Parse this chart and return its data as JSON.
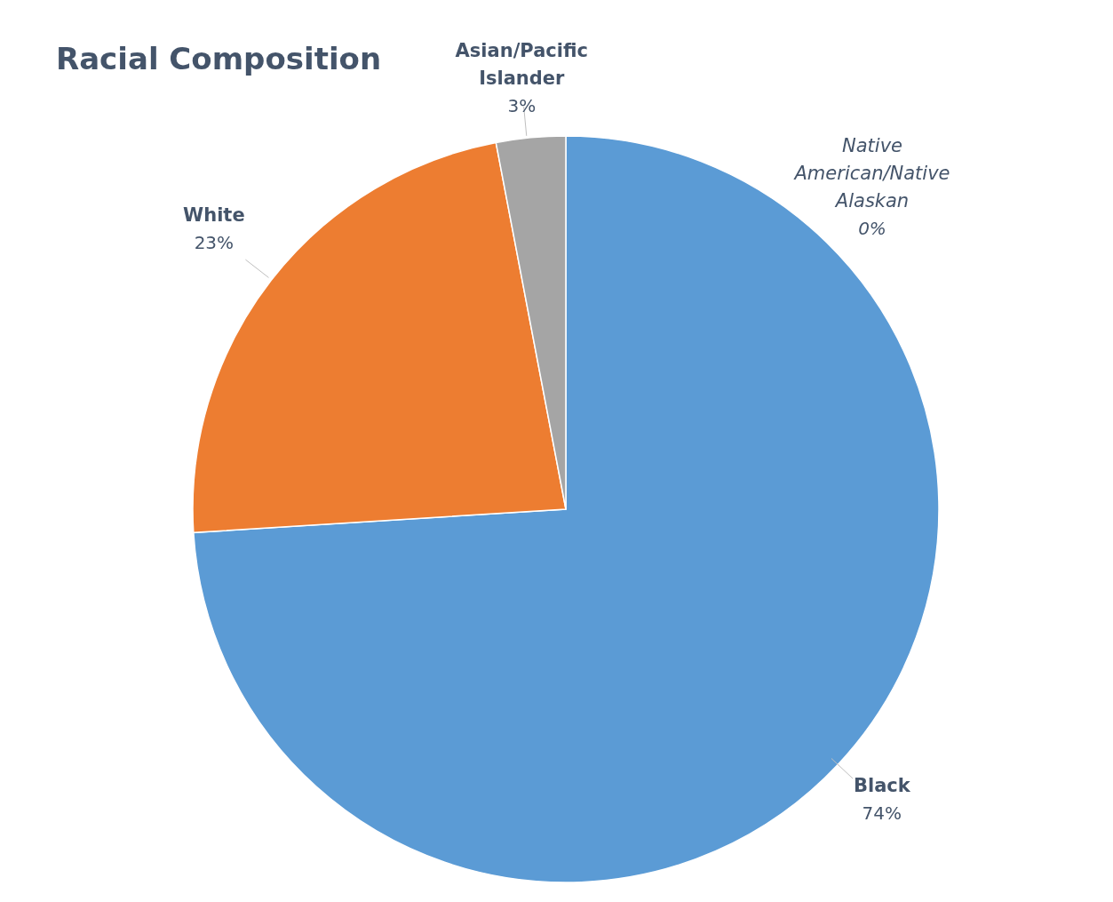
{
  "chart_data": {
    "type": "pie",
    "title": "Racial Composition",
    "categories": [
      "Black",
      "White",
      "Asian/Pacific Islander",
      "Native American/Native Alaskan"
    ],
    "values": [
      74,
      23,
      3,
      0
    ],
    "colors": [
      "#5b9bd5",
      "#ed7d31",
      "#a5a5a5",
      "#ffc000"
    ],
    "value_labels": [
      "74%",
      "23%",
      "3%",
      "0%"
    ]
  }
}
